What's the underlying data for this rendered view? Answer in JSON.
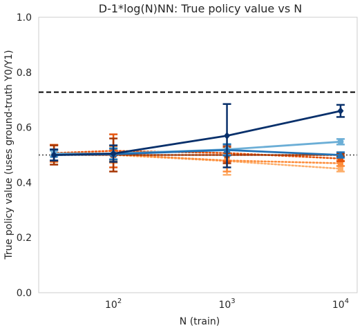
{
  "chart_data": {
    "type": "line",
    "title": "D-1*log(N)NN: True policy value vs N",
    "xlabel": "N (train)",
    "ylabel": "True policy value (uses ground-truth Y0/Y1)",
    "xscale": "log",
    "xlim": [
      22,
      14000
    ],
    "ylim": [
      0.0,
      1.0
    ],
    "grid": false,
    "legend": "none",
    "x_ticks": [
      {
        "value": 100,
        "base": "10",
        "exp": "2"
      },
      {
        "value": 1000,
        "base": "10",
        "exp": "3"
      },
      {
        "value": 10000,
        "base": "10",
        "exp": "4"
      }
    ],
    "y_ticks": [
      {
        "value": 0.0,
        "label": "0.0"
      },
      {
        "value": 0.2,
        "label": "0.2"
      },
      {
        "value": 0.4,
        "label": "0.4"
      },
      {
        "value": 0.6,
        "label": "0.6"
      },
      {
        "value": 0.8,
        "label": "0.8"
      },
      {
        "value": 1.0,
        "label": "1.0"
      }
    ],
    "x": [
      30,
      100,
      1000,
      10000
    ],
    "reference_lines": [
      {
        "y": 0.728,
        "style": "dashed",
        "color": "#000000"
      },
      {
        "y": 0.5,
        "style": "dotted",
        "color": "#555555"
      }
    ],
    "series": [
      {
        "values": [
          0.507,
          0.5,
          0.478,
          0.45
        ],
        "err": [
          0.03,
          0.02,
          0.05,
          0.01
        ],
        "color": "#fdae6b",
        "style": "dotted",
        "marker": "square"
      },
      {
        "values": [
          0.505,
          0.502,
          0.48,
          0.47
        ],
        "err": [
          0.03,
          0.03,
          0.04,
          0.01
        ],
        "color": "#fd8d3c",
        "style": "dotted",
        "marker": "square"
      },
      {
        "values": [
          0.507,
          0.515,
          0.507,
          0.487
        ],
        "err": [
          0.03,
          0.06,
          0.03,
          0.01
        ],
        "color": "#e6550d",
        "style": "dotted",
        "marker": "square"
      },
      {
        "values": [
          0.5,
          0.5,
          0.5,
          0.5
        ],
        "err": [
          0.035,
          0.06,
          0.03,
          0.005
        ],
        "color": "#a63603",
        "style": "dotted",
        "marker": "square"
      },
      {
        "values": [
          0.505,
          0.505,
          0.52,
          0.548
        ],
        "err": [
          0.01,
          0.02,
          0.02,
          0.01
        ],
        "color": "#6baed6",
        "style": "solid",
        "marker": "circle"
      },
      {
        "values": [
          0.5,
          0.503,
          0.518,
          0.5
        ],
        "err": [
          0.02,
          0.02,
          0.02,
          0.01
        ],
        "color": "#2171b5",
        "style": "solid",
        "marker": "triangle"
      },
      {
        "values": [
          0.5,
          0.505,
          0.57,
          0.66
        ],
        "err": [
          0.02,
          0.03,
          0.115,
          0.022
        ],
        "color": "#08306b",
        "style": "solid",
        "marker": "diamond"
      }
    ]
  }
}
